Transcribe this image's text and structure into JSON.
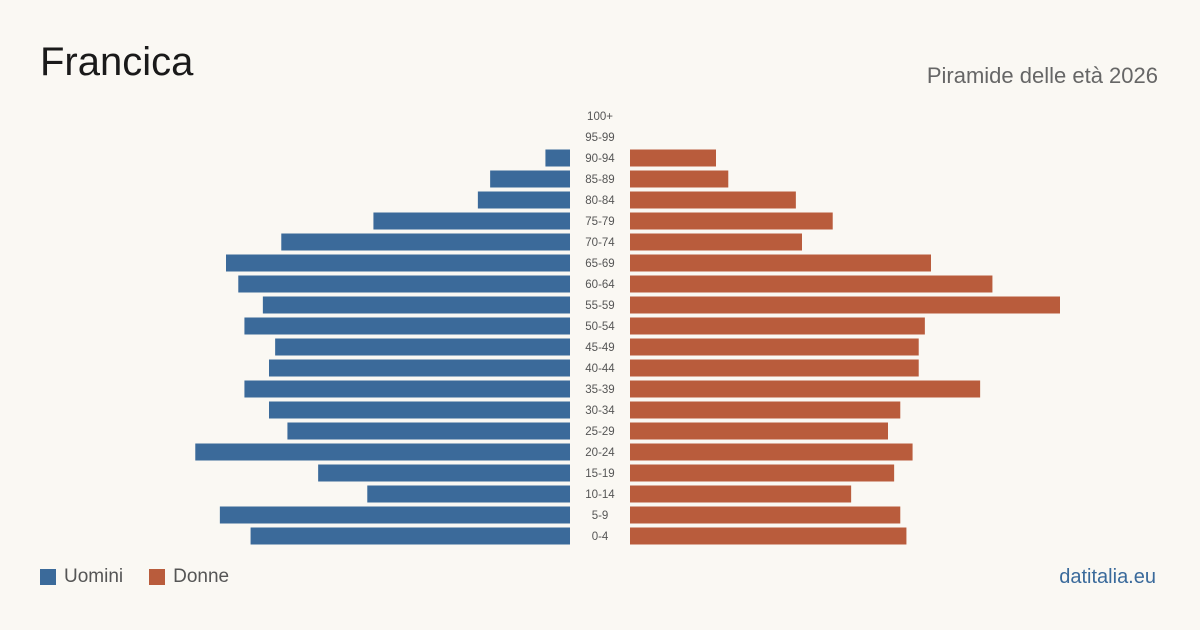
{
  "header": {
    "title": "Francica",
    "subtitle": "Piramide delle età 2026"
  },
  "legend": {
    "men_label": "Uomini",
    "women_label": "Donne"
  },
  "footer": {
    "source": "datitalia.eu"
  },
  "colors": {
    "men": "#3b6a9a",
    "women": "#b95c3c",
    "label": "#555555"
  },
  "chart_data": {
    "type": "bar",
    "orientation": "horizontal-pyramid",
    "categories": [
      "100+",
      "95-99",
      "90-94",
      "85-89",
      "80-84",
      "75-79",
      "70-74",
      "65-69",
      "60-64",
      "55-59",
      "50-54",
      "45-49",
      "40-44",
      "35-39",
      "30-34",
      "25-29",
      "20-24",
      "15-19",
      "10-14",
      "5-9",
      "0-4"
    ],
    "series": [
      {
        "name": "Uomini",
        "values": [
          0,
          0,
          4,
          13,
          15,
          32,
          47,
          56,
          54,
          50,
          53,
          48,
          49,
          53,
          49,
          46,
          61,
          41,
          33,
          57,
          52
        ]
      },
      {
        "name": "Donne",
        "values": [
          0,
          0,
          14,
          16,
          27,
          33,
          28,
          49,
          59,
          70,
          48,
          47,
          47,
          57,
          44,
          42,
          46,
          43,
          36,
          44,
          45
        ]
      }
    ],
    "xlim": [
      0,
      70
    ]
  }
}
